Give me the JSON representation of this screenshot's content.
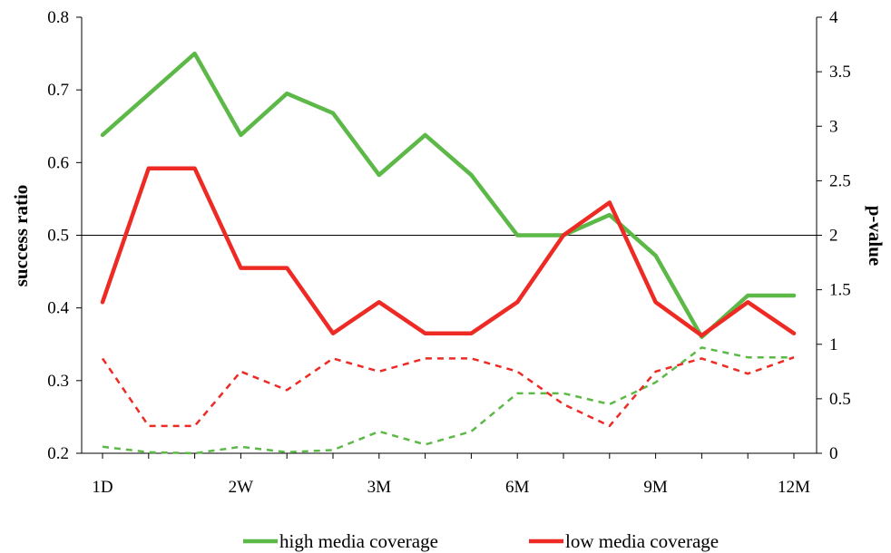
{
  "chart_data": {
    "type": "line",
    "x_tick_labels": [
      "1D",
      "2W",
      "3M",
      "6M",
      "9M",
      "12M"
    ],
    "x_tick_positions": [
      0,
      3,
      6,
      9,
      12,
      15
    ],
    "x": [
      0,
      1,
      2,
      3,
      4,
      5,
      6,
      7,
      8,
      9,
      10,
      11,
      12,
      13,
      14,
      15
    ],
    "ylabel": "success ratio",
    "y2label": "p-value",
    "ylim": [
      0.2,
      0.8
    ],
    "y_ticks": [
      "0.2",
      "0.3",
      "0.4",
      "0.5",
      "0.6",
      "0.7",
      "0.8"
    ],
    "y2lim": [
      0,
      4
    ],
    "y2_ticks": [
      "0",
      "0.5",
      "1",
      "1.5",
      "2",
      "2.5",
      "3",
      "3.5",
      "4"
    ],
    "reference_line_y": 0.5,
    "series": [
      {
        "name": "high media coverage",
        "axis": "left",
        "style": "solid",
        "color": "#5cb947",
        "values": [
          0.638,
          0.694,
          0.75,
          0.638,
          0.695,
          0.668,
          0.583,
          0.638,
          0.583,
          0.5,
          0.5,
          0.528,
          0.472,
          0.36,
          0.417,
          0.417
        ]
      },
      {
        "name": "low media coverage",
        "axis": "left",
        "style": "solid",
        "color": "#ee2a24",
        "values": [
          0.408,
          0.592,
          0.592,
          0.455,
          0.455,
          0.365,
          0.408,
          0.365,
          0.365,
          0.408,
          0.5,
          0.545,
          0.408,
          0.362,
          0.408,
          0.365
        ]
      },
      {
        "name": "",
        "axis": "right",
        "style": "dashed",
        "color": "#5cb947",
        "values": [
          0.06,
          0.01,
          0.0,
          0.06,
          0.01,
          0.03,
          0.2,
          0.08,
          0.2,
          0.55,
          0.55,
          0.45,
          0.65,
          0.97,
          0.88,
          0.88
        ]
      },
      {
        "name": "",
        "axis": "right",
        "style": "dashed",
        "color": "#ee2a24",
        "values": [
          0.87,
          0.25,
          0.25,
          0.75,
          0.58,
          0.87,
          0.75,
          0.87,
          0.87,
          0.75,
          0.45,
          0.25,
          0.75,
          0.87,
          0.73,
          0.88
        ]
      }
    ],
    "legend_position": "bottom"
  }
}
